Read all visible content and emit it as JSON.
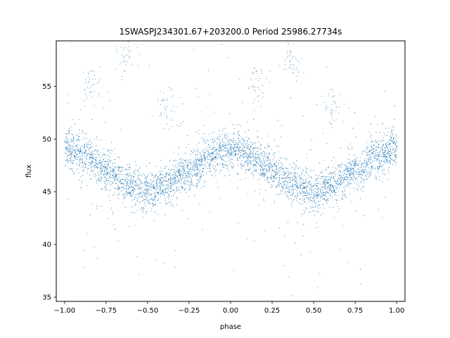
{
  "chart_data": {
    "type": "scatter",
    "title": "1SWASPJ234301.67+203200.0 Period 25986.27734s",
    "xlabel": "phase",
    "ylabel": "flux",
    "xlim": [
      -1.05,
      1.05
    ],
    "ylim": [
      34.6,
      59.3
    ],
    "x_ticks": [
      -1.0,
      -0.75,
      -0.5,
      -0.25,
      0.0,
      0.25,
      0.5,
      0.75,
      1.0
    ],
    "x_tick_labels": [
      "−1.00",
      "−0.75",
      "−0.50",
      "−0.25",
      "0.00",
      "0.25",
      "0.50",
      "0.75",
      "1.00"
    ],
    "y_ticks": [
      35,
      40,
      45,
      50,
      55
    ],
    "y_tick_labels": [
      "35",
      "40",
      "45",
      "50",
      "55"
    ],
    "grid": false,
    "marker_color": "#1f77b4",
    "series": [
      {
        "description": "folded light curve shown as dense small dots; sinusoidal trend with two cycles over phase -1 to 1",
        "trend": [
          {
            "x": -1.0,
            "y": 49.2
          },
          {
            "x": -0.875,
            "y": 48.3
          },
          {
            "x": -0.75,
            "y": 47.0
          },
          {
            "x": -0.625,
            "y": 45.8
          },
          {
            "x": -0.5,
            "y": 45.0
          },
          {
            "x": -0.375,
            "y": 45.8
          },
          {
            "x": -0.25,
            "y": 47.0
          },
          {
            "x": -0.125,
            "y": 48.3
          },
          {
            "x": 0.0,
            "y": 49.2
          },
          {
            "x": 0.125,
            "y": 48.3
          },
          {
            "x": 0.25,
            "y": 47.0
          },
          {
            "x": 0.375,
            "y": 45.8
          },
          {
            "x": 0.5,
            "y": 45.0
          },
          {
            "x": 0.625,
            "y": 45.8
          },
          {
            "x": 0.75,
            "y": 47.0
          },
          {
            "x": 0.875,
            "y": 48.3
          },
          {
            "x": 1.0,
            "y": 49.2
          }
        ],
        "scatter_sd": 0.9,
        "outlier_groups": [
          {
            "x": -0.63,
            "y": 57.6
          },
          {
            "x": -0.39,
            "y": 53.0
          },
          {
            "x": 0.37,
            "y": 57.6
          },
          {
            "x": 0.61,
            "y": 53.0
          },
          {
            "x": -0.84,
            "y": 55.2
          },
          {
            "x": 0.16,
            "y": 55.2
          }
        ]
      }
    ]
  }
}
